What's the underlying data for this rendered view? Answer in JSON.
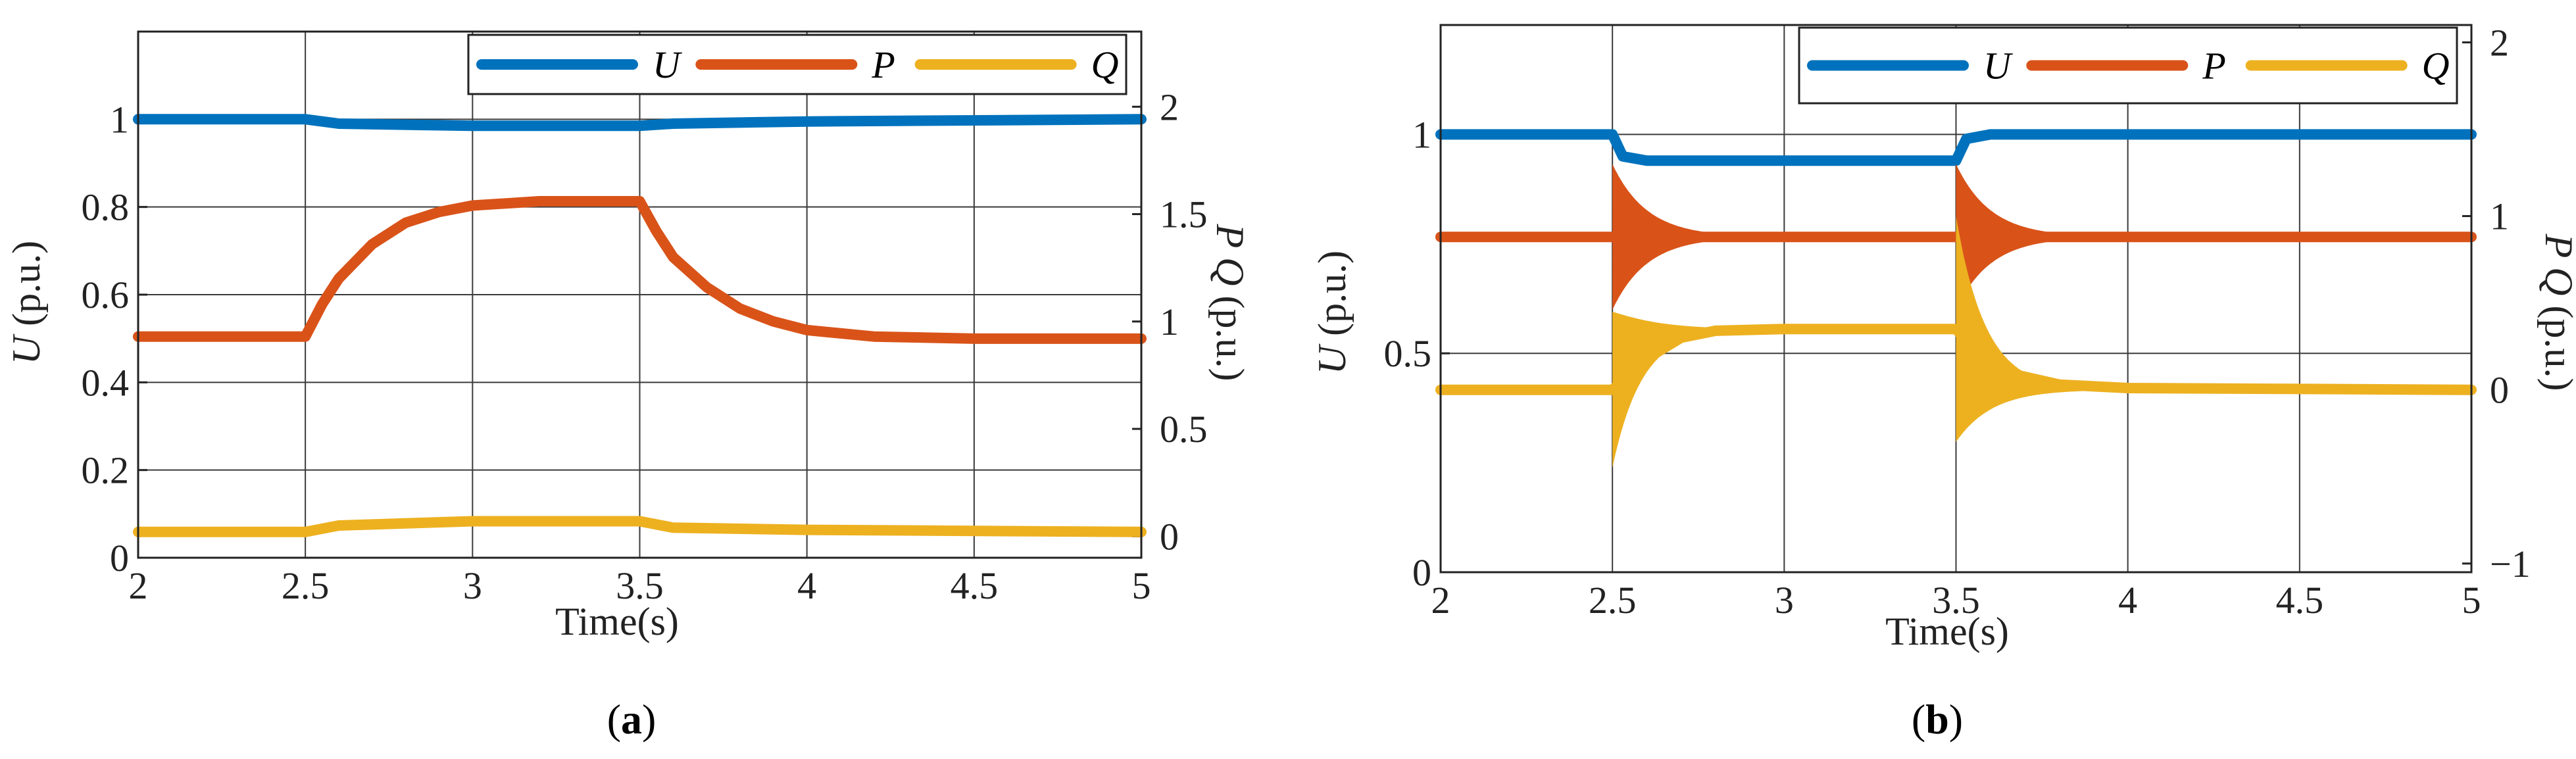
{
  "colors": {
    "U": "#0072BD",
    "P": "#D95319",
    "Q": "#EDB120"
  },
  "chart_data": [
    {
      "id": "a",
      "type": "line",
      "panel_label": "a",
      "xlabel": "Time(s)",
      "ylabel_left_italic": "U",
      "ylabel_left_unit": " (p.u.)",
      "ylabel_right_italic": "P Q",
      "ylabel_right_unit": " (p.u.)",
      "xlim": [
        2,
        5
      ],
      "ylim_left": [
        0,
        1.2
      ],
      "ylim_right": [
        -0.1,
        2.35
      ],
      "xticks": [
        "2",
        "2.5",
        "3",
        "3.5",
        "4",
        "4.5",
        "5"
      ],
      "yticks_left": [
        "0",
        "0.2",
        "0.4",
        "0.6",
        "0.8",
        "1"
      ],
      "yticks_right": [
        "0",
        "0.5",
        "1",
        "1.5",
        "2"
      ],
      "grid": true,
      "legend_position": "top-right",
      "series": [
        {
          "name": "U",
          "axis": "left",
          "x": [
            2,
            2.5,
            2.6,
            3.0,
            3.5,
            3.6,
            4.0,
            5.0
          ],
          "y": [
            1.0,
            1.0,
            0.99,
            0.985,
            0.985,
            0.99,
            0.995,
            1.0
          ]
        },
        {
          "name": "P",
          "axis": "right",
          "x": [
            2,
            2.5,
            2.55,
            2.6,
            2.7,
            2.8,
            2.9,
            3.0,
            3.2,
            3.5,
            3.55,
            3.6,
            3.7,
            3.8,
            3.9,
            4.0,
            4.2,
            4.5,
            5.0
          ],
          "y": [
            0.93,
            0.93,
            1.08,
            1.2,
            1.36,
            1.46,
            1.51,
            1.54,
            1.56,
            1.56,
            1.42,
            1.3,
            1.16,
            1.06,
            1.0,
            0.96,
            0.93,
            0.92,
            0.92
          ]
        },
        {
          "name": "Q",
          "axis": "right",
          "x": [
            2,
            2.5,
            2.6,
            3.0,
            3.5,
            3.6,
            4.0,
            5.0
          ],
          "y": [
            0.02,
            0.02,
            0.05,
            0.07,
            0.07,
            0.04,
            0.03,
            0.02
          ]
        }
      ]
    },
    {
      "id": "b",
      "type": "line",
      "panel_label": "b",
      "xlabel": "Time(s)",
      "ylabel_left_italic": "U",
      "ylabel_left_unit": " (p.u.)",
      "ylabel_right_italic": "P Q",
      "ylabel_right_unit": " (p.u.)",
      "xlim": [
        2,
        5
      ],
      "ylim_left": [
        0,
        1.25
      ],
      "ylim_right": [
        -1.05,
        2.1
      ],
      "xticks": [
        "2",
        "2.5",
        "3",
        "3.5",
        "4",
        "4.5",
        "5"
      ],
      "yticks_left": [
        "0",
        "0.5",
        "1"
      ],
      "yticks_right": [
        "−1",
        "0",
        "1",
        "2"
      ],
      "grid": true,
      "legend_position": "top-right",
      "series": [
        {
          "name": "U",
          "axis": "left",
          "x": [
            2,
            2.5,
            2.53,
            2.6,
            3.0,
            3.5,
            3.53,
            3.6,
            5.0
          ],
          "y": [
            1.0,
            1.0,
            0.95,
            0.94,
            0.94,
            0.94,
            0.99,
            1.0,
            1.0
          ]
        },
        {
          "name": "P",
          "axis": "right",
          "x": [
            2,
            2.5,
            5.0
          ],
          "y": [
            0.88,
            0.88,
            0.88
          ]
        },
        {
          "name": "Q",
          "axis": "right",
          "x": [
            2,
            2.5,
            2.6,
            2.7,
            2.8,
            3.0,
            3.5,
            3.6,
            3.8,
            4.0,
            5.0
          ],
          "y": [
            0.0,
            0.0,
            0.18,
            0.3,
            0.34,
            0.35,
            0.35,
            0.12,
            0.03,
            0.01,
            0.0
          ]
        }
      ]
    }
  ]
}
